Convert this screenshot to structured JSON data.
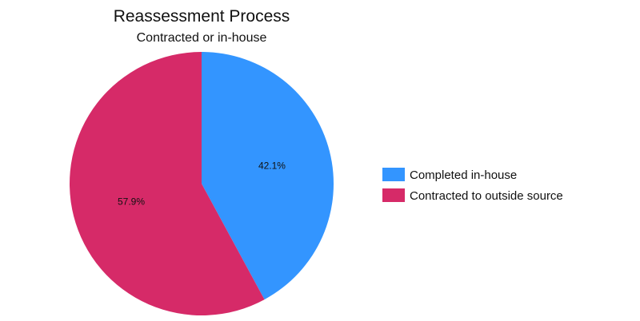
{
  "chart_data": {
    "type": "pie",
    "title": "Reassessment Process",
    "subtitle": "Contracted or in-house",
    "categories": [
      "Completed in-house",
      "Contracted to outside source"
    ],
    "values": [
      42.1,
      57.9
    ],
    "labels": [
      "42.1%",
      "57.9%"
    ],
    "colors": [
      "#3395ff",
      "#d62a68"
    ],
    "start_angle_deg": 0,
    "direction": "clockwise",
    "legend": {
      "position": "right",
      "entries": [
        "Completed in-house",
        "Contracted to outside source"
      ]
    }
  }
}
